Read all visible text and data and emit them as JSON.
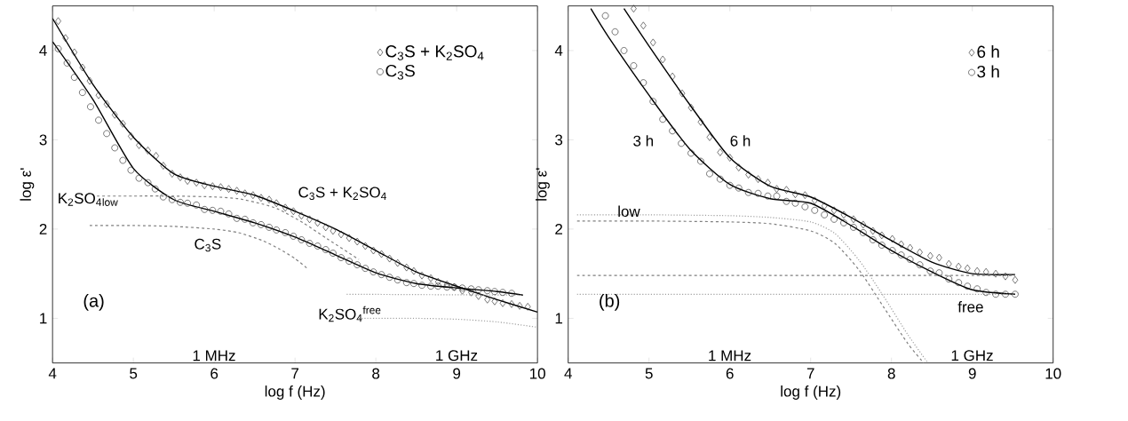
{
  "chart_data": [
    {
      "type": "scatter",
      "title": "(a)",
      "xlabel": "log f (Hz)",
      "ylabel": "log ε'",
      "xlim": [
        4,
        10
      ],
      "ylim": [
        0.5,
        4.5
      ],
      "xticks": [
        4,
        5,
        6,
        7,
        8,
        9,
        10
      ],
      "yticks": [
        1,
        2,
        3,
        4
      ],
      "legend": "top right",
      "annotations": [
        "C$_{3}$S + K$_{2}$SO$_{4}$",
        "K$_{2}$SO$_{4}$$_{low}$",
        "C$_{3}$S",
        "K$_{2}$SO$_{4}$$^{free}$",
        "1 MHz",
        "1 GHz"
      ],
      "series": [
        {
          "name": "C$_{3}$S + K$_{2}$SO$_{4}$",
          "marker": "diamond",
          "color": "#202020",
          "x": [
            4.07,
            4.16,
            4.27,
            4.37,
            4.46,
            4.57,
            4.67,
            4.77,
            4.87,
            4.97,
            5.07,
            5.18,
            5.28,
            5.37,
            5.48,
            5.58,
            5.67,
            5.78,
            5.88,
            5.98,
            6.08,
            6.18,
            6.28,
            6.38,
            6.48,
            6.58,
            6.68,
            6.77,
            6.88,
            6.98,
            7.08,
            7.18,
            7.28,
            7.38,
            7.47,
            7.57,
            7.67,
            7.77,
            7.87,
            7.97,
            8.07,
            8.17,
            8.27,
            8.38,
            8.47,
            8.57,
            8.68,
            8.77,
            8.88,
            8.97,
            9.07,
            9.18,
            9.27,
            9.38,
            9.47,
            9.57,
            9.68,
            9.78,
            9.88
          ],
          "values": [
            4.33,
            4.14,
            3.98,
            3.81,
            3.66,
            3.5,
            3.4,
            3.28,
            3.18,
            3.04,
            2.94,
            2.88,
            2.82,
            2.71,
            2.62,
            2.58,
            2.54,
            2.52,
            2.49,
            2.48,
            2.47,
            2.45,
            2.43,
            2.4,
            2.38,
            2.35,
            2.33,
            2.29,
            2.24,
            2.2,
            2.15,
            2.11,
            2.07,
            2.02,
            1.98,
            1.94,
            1.9,
            1.86,
            1.81,
            1.76,
            1.72,
            1.67,
            1.62,
            1.57,
            1.53,
            1.48,
            1.45,
            1.41,
            1.38,
            1.35,
            1.31,
            1.29,
            1.25,
            1.21,
            1.19,
            1.17,
            1.16,
            1.14,
            1.13
          ]
        },
        {
          "name": "C$_{3}$S",
          "marker": "circle",
          "color": "#202020",
          "x": [
            4.07,
            4.18,
            4.27,
            4.37,
            4.47,
            4.57,
            4.67,
            4.77,
            4.87,
            4.97,
            5.07,
            5.18,
            5.27,
            5.37,
            5.48,
            5.58,
            5.67,
            5.78,
            5.88,
            5.98,
            6.08,
            6.18,
            6.28,
            6.38,
            6.48,
            6.58,
            6.68,
            6.77,
            6.88,
            6.98,
            7.08,
            7.18,
            7.28,
            7.38,
            7.47,
            7.57,
            7.67,
            7.77,
            7.87,
            7.97,
            8.07,
            8.17,
            8.27,
            8.38,
            8.47,
            8.57,
            8.68,
            8.77,
            8.88,
            8.97,
            9.07,
            9.18,
            9.27,
            9.38,
            9.47,
            9.57,
            9.68
          ],
          "values": [
            4.02,
            3.86,
            3.7,
            3.53,
            3.37,
            3.22,
            3.07,
            2.91,
            2.77,
            2.66,
            2.57,
            2.52,
            2.45,
            2.36,
            2.33,
            2.3,
            2.29,
            2.27,
            2.22,
            2.21,
            2.2,
            2.17,
            2.12,
            2.11,
            2.07,
            2.05,
            2.02,
            1.99,
            1.96,
            1.92,
            1.88,
            1.84,
            1.81,
            1.77,
            1.73,
            1.68,
            1.64,
            1.6,
            1.56,
            1.52,
            1.49,
            1.46,
            1.43,
            1.4,
            1.39,
            1.37,
            1.36,
            1.36,
            1.35,
            1.35,
            1.34,
            1.33,
            1.32,
            1.31,
            1.3,
            1.29,
            1.28
          ]
        },
        {
          "type": "line",
          "line_style": "solid",
          "color": "#000000",
          "x": [
            4,
            4.5,
            5,
            5.5,
            6,
            6.5,
            7,
            7.5,
            8,
            8.5,
            9,
            9.5,
            10
          ],
          "values": [
            4.36,
            3.62,
            3.03,
            2.62,
            2.48,
            2.38,
            2.2,
            2.0,
            1.76,
            1.52,
            1.36,
            1.21,
            1.07
          ]
        },
        {
          "type": "line",
          "line_style": "solid",
          "color": "#000000",
          "x": [
            4,
            4.5,
            5,
            5.5,
            6,
            6.5,
            7,
            7.5,
            8,
            8.5,
            9,
            9.5,
            9.82
          ],
          "values": [
            4.1,
            3.45,
            2.68,
            2.33,
            2.2,
            2.07,
            1.91,
            1.71,
            1.51,
            1.39,
            1.34,
            1.3,
            1.26
          ]
        },
        {
          "type": "line",
          "line_style": "dashed",
          "color": "#808080",
          "x": [
            4.55,
            5,
            5.5,
            6,
            6.3,
            6.6,
            6.8,
            7.1,
            7.4,
            7.79
          ],
          "values": [
            2.37,
            2.37,
            2.37,
            2.36,
            2.34,
            2.28,
            2.22,
            2.07,
            1.89,
            1.66
          ]
        },
        {
          "type": "line",
          "line_style": "dashed",
          "color": "#808080",
          "x": [
            4.46,
            5,
            5.5,
            6,
            6.3,
            6.6,
            6.8,
            7.0,
            7.15
          ],
          "values": [
            2.04,
            2.04,
            2.03,
            2.0,
            1.96,
            1.87,
            1.78,
            1.67,
            1.56
          ]
        },
        {
          "type": "line",
          "line_style": "dotted",
          "color": "#a0a0a0",
          "x": [
            7.64,
            9.81
          ],
          "values": [
            1.27,
            1.26
          ]
        },
        {
          "type": "line",
          "line_style": "dotted",
          "color": "#a0a0a0",
          "x": [
            7.79,
            8.5,
            9,
            9.5,
            10
          ],
          "values": [
            1.0,
            1.0,
            0.99,
            0.96,
            0.9
          ]
        }
      ]
    },
    {
      "type": "scatter",
      "title": "(b)",
      "xlabel": "log f (Hz)",
      "ylabel": "log ε'",
      "xlim": [
        4,
        10
      ],
      "ylim": [
        0.5,
        4.5
      ],
      "xticks": [
        4,
        5,
        6,
        7,
        8,
        9,
        10
      ],
      "yticks": [
        1,
        2,
        3,
        4
      ],
      "legend": "top right",
      "annotations": [
        "3 h",
        "6 h",
        "low",
        "free",
        "1 MHz",
        "1 GHz"
      ],
      "series": [
        {
          "name": "6 h",
          "marker": "diamond",
          "color": "#202020",
          "x": [
            4.81,
            4.93,
            5.05,
            5.17,
            5.29,
            5.41,
            5.52,
            5.64,
            5.75,
            5.88,
            6.0,
            6.11,
            6.23,
            6.35,
            6.47,
            6.58,
            6.7,
            6.81,
            6.93,
            7.05,
            7.17,
            7.29,
            7.41,
            7.53,
            7.65,
            7.77,
            7.88,
            8.01,
            8.12,
            8.23,
            8.35,
            8.48,
            8.59,
            8.71,
            8.83,
            8.94,
            9.06,
            9.17,
            9.29,
            9.41,
            9.53
          ],
          "values": [
            4.47,
            4.28,
            4.09,
            3.9,
            3.71,
            3.52,
            3.36,
            3.2,
            3.03,
            2.86,
            2.8,
            2.69,
            2.61,
            2.56,
            2.52,
            2.45,
            2.44,
            2.39,
            2.38,
            2.32,
            2.26,
            2.21,
            2.16,
            2.11,
            2.05,
            1.98,
            1.93,
            1.89,
            1.83,
            1.79,
            1.74,
            1.7,
            1.68,
            1.61,
            1.58,
            1.56,
            1.53,
            1.52,
            1.5,
            1.47,
            1.43
          ]
        },
        {
          "name": "3 h",
          "marker": "circle",
          "color": "#202020",
          "x": [
            4.46,
            4.58,
            4.69,
            4.81,
            4.93,
            5.05,
            5.17,
            5.29,
            5.4,
            5.52,
            5.64,
            5.75,
            5.88,
            6.0,
            6.11,
            6.23,
            6.35,
            6.47,
            6.58,
            6.7,
            6.81,
            6.93,
            7.05,
            7.17,
            7.29,
            7.41,
            7.53,
            7.65,
            7.77,
            7.88,
            8.01,
            8.12,
            8.23,
            8.35,
            8.48,
            8.59,
            8.71,
            8.83,
            8.94,
            9.06,
            9.17,
            9.29,
            9.41,
            9.53
          ],
          "values": [
            4.39,
            4.21,
            4.0,
            3.83,
            3.64,
            3.43,
            3.23,
            3.1,
            2.96,
            2.85,
            2.76,
            2.62,
            2.56,
            2.49,
            2.46,
            2.41,
            2.4,
            2.37,
            2.37,
            2.31,
            2.29,
            2.25,
            2.21,
            2.16,
            2.11,
            2.07,
            2.02,
            1.96,
            1.88,
            1.82,
            1.76,
            1.71,
            1.66,
            1.6,
            1.53,
            1.51,
            1.44,
            1.4,
            1.36,
            1.33,
            1.29,
            1.27,
            1.27,
            1.27
          ]
        },
        {
          "type": "line",
          "line_style": "solid",
          "color": "#000000",
          "x": [
            4.69,
            5,
            5.5,
            6,
            6.5,
            7,
            7.5,
            8,
            8.5,
            9,
            9.53
          ],
          "values": [
            4.47,
            4.05,
            3.4,
            2.8,
            2.48,
            2.36,
            2.13,
            1.87,
            1.63,
            1.5,
            1.49
          ]
        },
        {
          "type": "line",
          "line_style": "solid",
          "color": "#000000",
          "x": [
            4.28,
            4.5,
            5,
            5.5,
            6,
            6.5,
            7,
            7.5,
            8,
            8.5,
            9,
            9.53
          ],
          "values": [
            4.47,
            4.15,
            3.5,
            2.9,
            2.5,
            2.34,
            2.29,
            2.04,
            1.76,
            1.52,
            1.32,
            1.27
          ]
        },
        {
          "type": "line",
          "line_style": "dotted",
          "color": "#a0a0a0",
          "x": [
            4.11,
            5,
            6,
            6.5,
            7,
            7.3,
            7.6,
            7.9,
            8.2,
            8.45
          ],
          "values": [
            2.16,
            2.16,
            2.15,
            2.13,
            2.08,
            1.95,
            1.65,
            1.25,
            0.82,
            0.5
          ]
        },
        {
          "type": "line",
          "line_style": "dashed",
          "color": "#808080",
          "x": [
            4.11,
            5,
            6,
            6.5,
            7,
            7.3,
            7.6,
            7.9,
            8.2,
            8.4
          ],
          "values": [
            2.09,
            2.09,
            2.08,
            2.06,
            1.98,
            1.84,
            1.54,
            1.13,
            0.72,
            0.5
          ]
        },
        {
          "type": "line",
          "line_style": "dashed",
          "color": "#808080",
          "x": [
            4.11,
            9.53
          ],
          "values": [
            1.48,
            1.48
          ]
        },
        {
          "type": "line",
          "line_style": "dotted",
          "color": "#a0a0a0",
          "x": [
            4.11,
            9.53
          ],
          "values": [
            1.27,
            1.27
          ]
        }
      ]
    }
  ]
}
